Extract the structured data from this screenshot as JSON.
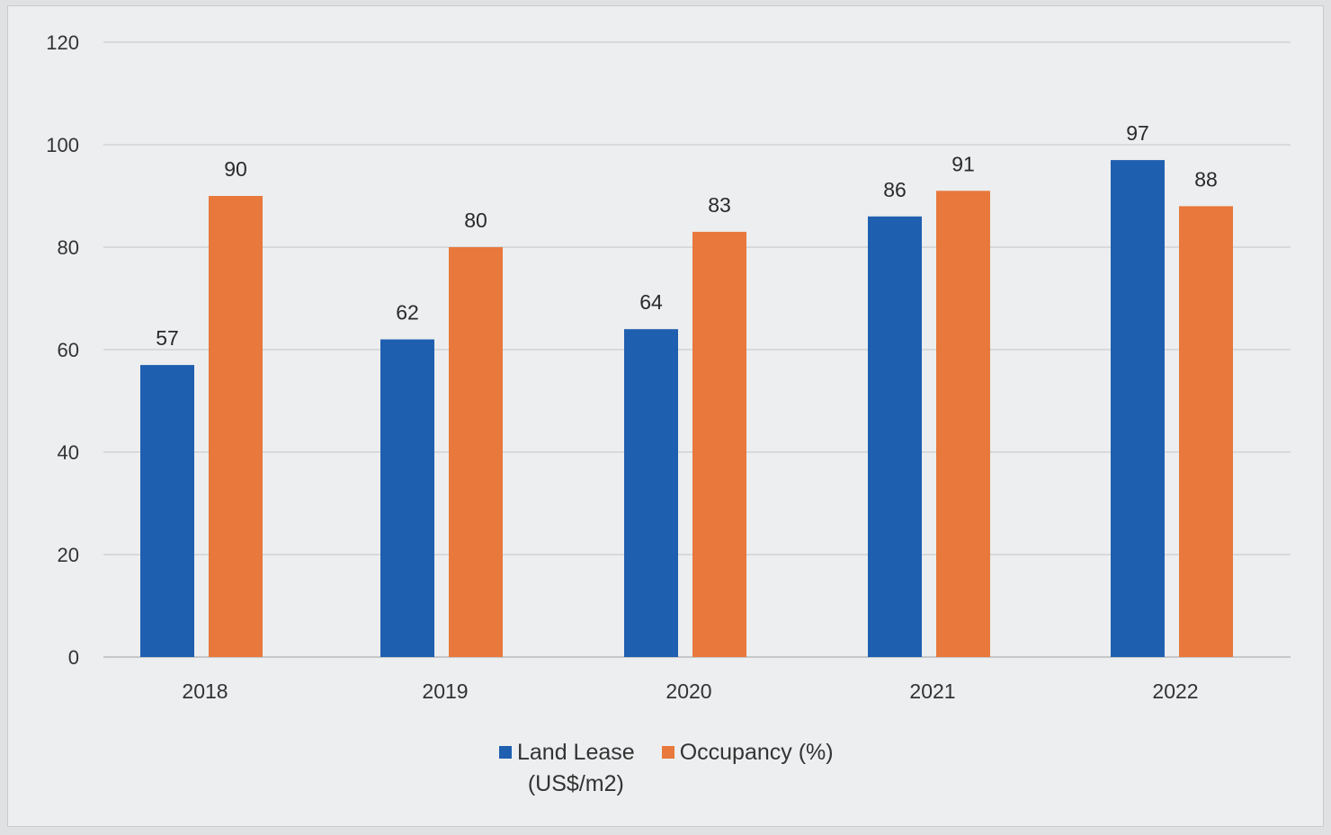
{
  "chart_data": {
    "type": "bar",
    "title": "",
    "xlabel": "",
    "ylabel": "",
    "categories": [
      "2018",
      "2019",
      "2020",
      "2021",
      "2022"
    ],
    "series": [
      {
        "name": "Land Lease\n(US$/m2)",
        "color": "#1f5fb0",
        "values": [
          57,
          62,
          64,
          86,
          97
        ]
      },
      {
        "name": "Occupancy (%)",
        "color": "#e8783c",
        "values": [
          90,
          80,
          83,
          91,
          88
        ]
      }
    ],
    "ylim": [
      0,
      120
    ],
    "yticks": [
      "0",
      "20",
      "40",
      "60",
      "80",
      "100",
      "120"
    ],
    "grid": true,
    "legend_position": "bottom"
  }
}
